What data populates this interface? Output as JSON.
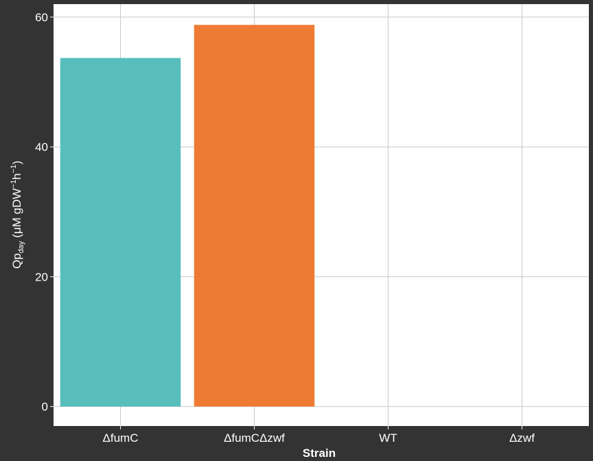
{
  "chart_data": {
    "type": "bar",
    "categories": [
      "ΔfumC",
      "ΔfumCΔzwf",
      "WT",
      "Δzwf"
    ],
    "values": [
      53.7,
      58.8,
      0,
      0
    ],
    "colors": [
      "#58BEBC",
      "#EE7B33",
      "#58BEBC",
      "#58BEBC"
    ],
    "xlabel": "Strain",
    "ylabel": {
      "main": "Qp",
      "sub": "day",
      "unit_open": " (μM gDW",
      "sup1": "−1",
      "mid": "h",
      "sup2": "−1",
      "unit_close": ")"
    },
    "ylim": [
      -3,
      62
    ],
    "yticks": [
      0,
      20,
      40,
      60
    ],
    "grid": true,
    "legend": "none",
    "panel_background": "#ffffff",
    "background": "#333333",
    "grid_color": "#c8c8c8"
  }
}
